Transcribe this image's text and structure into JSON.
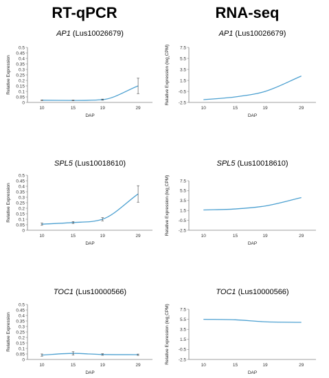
{
  "column_titles": {
    "left": "RT-qPCR",
    "right": "RNA-seq"
  },
  "colors": {
    "line": "#4a9fd0",
    "axis": "#7f7f7f",
    "error_bar": "#404040"
  },
  "chart_data": [
    {
      "type": "line",
      "gene": "AP1",
      "gene_id": "(Lus10026679)",
      "xlabel": "DAP",
      "ylabel": "Relative Expression",
      "categories": [
        "10",
        "15",
        "19",
        "29"
      ],
      "y_ticks": [
        "0",
        "0.05",
        "0.1",
        "0.15",
        "0.2",
        "0.25",
        "0.3",
        "0.35",
        "0.4",
        "0.45",
        "0.5"
      ],
      "ylim": [
        0,
        0.5
      ],
      "series": [
        {
          "values": [
            0.02,
            0.018,
            0.025,
            0.15
          ],
          "errors": [
            0.003,
            0.003,
            0.005,
            0.07
          ]
        }
      ]
    },
    {
      "type": "line",
      "gene": "AP1",
      "gene_id": "(Lus10026679)",
      "xlabel": "DAP",
      "ylabel": "Relative Expression (log₂CPM)",
      "categories": [
        "10",
        "15",
        "19",
        "29"
      ],
      "y_ticks": [
        "-2.5",
        "-0.5",
        "1.5",
        "3.5",
        "5.5",
        "7.5"
      ],
      "ylim": [
        -2.5,
        7.5
      ],
      "series": [
        {
          "values": [
            -2.0,
            -1.5,
            -0.5,
            2.3
          ]
        }
      ]
    },
    {
      "type": "line",
      "gene": "SPL5",
      "gene_id": "(Lus10018610)",
      "xlabel": "DAP",
      "ylabel": "Relative Expression",
      "categories": [
        "10",
        "15",
        "19",
        "29"
      ],
      "y_ticks": [
        "0",
        "0.05",
        "0.1",
        "0.15",
        "0.2",
        "0.25",
        "0.3",
        "0.35",
        "0.4",
        "0.45",
        "0.5"
      ],
      "ylim": [
        0,
        0.5
      ],
      "series": [
        {
          "values": [
            0.055,
            0.07,
            0.1,
            0.33
          ],
          "errors": [
            0.01,
            0.008,
            0.015,
            0.075
          ]
        }
      ]
    },
    {
      "type": "line",
      "gene": "SPL5",
      "gene_id": "(Lus10018610)",
      "xlabel": "DAP",
      "ylabel": "Relative Expression (log₂CPM)",
      "categories": [
        "10",
        "15",
        "19",
        "29"
      ],
      "y_ticks": [
        "-2.5",
        "-0.5",
        "1.5",
        "3.5",
        "5.5",
        "7.5"
      ],
      "ylim": [
        -2.5,
        7.5
      ],
      "series": [
        {
          "values": [
            1.6,
            1.8,
            2.4,
            4.1
          ]
        }
      ]
    },
    {
      "type": "line",
      "gene": "TOC1",
      "gene_id": "(Lus10000566)",
      "xlabel": "DAP",
      "ylabel": "Relative Expression",
      "categories": [
        "10",
        "15",
        "19",
        "29"
      ],
      "y_ticks": [
        "0",
        "0.05",
        "0.1",
        "0.15",
        "0.2",
        "0.25",
        "0.3",
        "0.35",
        "0.4",
        "0.45",
        "0.5"
      ],
      "ylim": [
        0,
        0.5
      ],
      "series": [
        {
          "values": [
            0.04,
            0.055,
            0.045,
            0.043
          ],
          "errors": [
            0.01,
            0.015,
            0.007,
            0.006
          ]
        }
      ]
    },
    {
      "type": "line",
      "gene": "TOC1",
      "gene_id": "(Lus10000566)",
      "xlabel": "DAP",
      "ylabel": "Relative Expression (log₂CPM)",
      "categories": [
        "10",
        "15",
        "19",
        "29"
      ],
      "y_ticks": [
        "-2.5",
        "-0.5",
        "1.5",
        "3.5",
        "5.5",
        "7.5"
      ],
      "ylim": [
        -2.5,
        7.5
      ],
      "series": [
        {
          "values": [
            5.5,
            5.4,
            5.0,
            4.9
          ]
        }
      ]
    }
  ]
}
